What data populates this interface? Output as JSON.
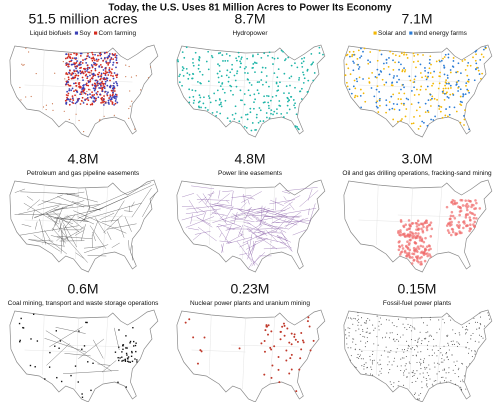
{
  "header": {
    "title": "Today, the U.S. Uses 81 Million Acres to Power Its Economy"
  },
  "panels": [
    {
      "value": "51.5 million acres",
      "label": "Liquid biofuels",
      "legend": [
        {
          "label": "Soy"
        },
        {
          "label": "Corn farming"
        }
      ]
    },
    {
      "value": "8.7M",
      "label": "Hydropower"
    },
    {
      "value": "7.1M",
      "legend": [
        {
          "label": "Solar and"
        },
        {
          "label": "wind energy farms"
        }
      ]
    },
    {
      "value": "4.8M",
      "label": "Petroleum and gas pipeline easements"
    },
    {
      "value": "4.8M",
      "label": "Power line easements"
    },
    {
      "value": "3.0M",
      "label": "Oil and gas drilling operations, fracking-sand mining"
    },
    {
      "value": "0.6M",
      "label": "Coal mining, transport and waste storage operations"
    },
    {
      "value": "0.23M",
      "label": "Nuclear power plants and uranium mining"
    },
    {
      "value": "0.15M",
      "label": "Fossil-fuel power plants"
    }
  ]
}
